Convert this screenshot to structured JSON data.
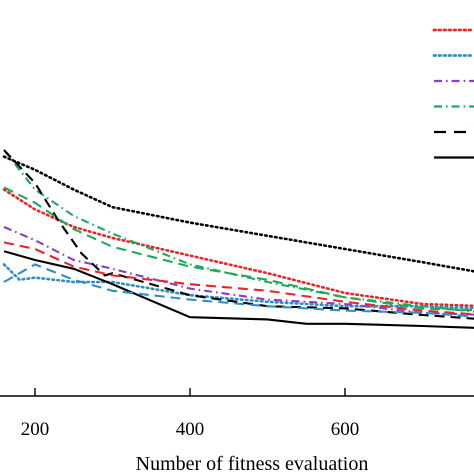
{
  "chart_data": {
    "type": "line",
    "title": "",
    "xlabel": "Number of fitness evaluation",
    "ylabel": "",
    "xlim": [
      160,
      780
    ],
    "ylim": [
      0,
      100
    ],
    "xticks": [
      200,
      400,
      600
    ],
    "grid": false,
    "legend": {
      "placement": "top-right",
      "entries": [
        {
          "series": 0
        },
        {
          "series": 1
        },
        {
          "series": 2
        },
        {
          "series": 3
        },
        {
          "series": 4
        },
        {
          "series": 5
        }
      ]
    },
    "series": [
      {
        "color": "#e8262a",
        "style": "dotted",
        "points": [
          [
            160,
            82
          ],
          [
            200,
            73
          ],
          [
            250,
            65
          ],
          [
            300,
            60
          ],
          [
            400,
            52
          ],
          [
            500,
            44
          ],
          [
            600,
            35
          ],
          [
            700,
            30
          ],
          [
            780,
            29
          ]
        ]
      },
      {
        "color": "#2f8fc4",
        "style": "dotted",
        "points": [
          [
            160,
            48
          ],
          [
            180,
            41
          ],
          [
            200,
            42
          ],
          [
            250,
            40
          ],
          [
            300,
            40
          ],
          [
            400,
            34
          ],
          [
            500,
            31
          ],
          [
            600,
            29
          ],
          [
            700,
            29
          ],
          [
            780,
            28
          ]
        ]
      },
      {
        "color": "#8a3fbf",
        "style": "dash-dot",
        "points": [
          [
            160,
            65
          ],
          [
            200,
            59
          ],
          [
            250,
            50
          ],
          [
            300,
            46
          ],
          [
            400,
            37
          ],
          [
            500,
            32
          ],
          [
            600,
            30
          ],
          [
            700,
            26
          ],
          [
            780,
            25
          ]
        ]
      },
      {
        "color": "#1ea85a",
        "style": "dash-dot",
        "points": [
          [
            160,
            100
          ],
          [
            180,
            91
          ],
          [
            200,
            82
          ],
          [
            250,
            70
          ],
          [
            300,
            62
          ],
          [
            400,
            48
          ],
          [
            500,
            40
          ],
          [
            600,
            33
          ],
          [
            700,
            29
          ],
          [
            780,
            26
          ]
        ]
      },
      {
        "color": "#000000",
        "style": "dashed",
        "points": [
          [
            160,
            100
          ],
          [
            200,
            85
          ],
          [
            230,
            68
          ],
          [
            260,
            53
          ],
          [
            290,
            43
          ],
          [
            300,
            44
          ],
          [
            400,
            34
          ],
          [
            500,
            29
          ],
          [
            600,
            28
          ],
          [
            700,
            25
          ],
          [
            780,
            23
          ]
        ]
      },
      {
        "color": "#000000",
        "style": "solid",
        "points": [
          [
            160,
            54
          ],
          [
            200,
            50
          ],
          [
            250,
            46
          ],
          [
            300,
            39
          ],
          [
            400,
            24
          ],
          [
            500,
            23
          ],
          [
            550,
            21
          ],
          [
            600,
            21
          ],
          [
            700,
            20
          ],
          [
            780,
            19
          ]
        ]
      },
      {
        "color": "#e8262a",
        "style": "dashed",
        "points": [
          [
            160,
            58
          ],
          [
            200,
            55
          ],
          [
            250,
            47
          ],
          [
            300,
            43
          ],
          [
            400,
            39
          ],
          [
            500,
            36
          ],
          [
            600,
            31
          ],
          [
            700,
            27
          ],
          [
            780,
            25
          ]
        ]
      },
      {
        "color": "#2f8fc4",
        "style": "dashed",
        "points": [
          [
            160,
            40
          ],
          [
            200,
            48
          ],
          [
            250,
            41
          ],
          [
            300,
            36
          ],
          [
            400,
            32
          ],
          [
            500,
            29
          ],
          [
            600,
            27
          ],
          [
            700,
            26
          ],
          [
            780,
            24
          ]
        ]
      },
      {
        "color": "#1ea85a",
        "style": "dashed",
        "points": [
          [
            160,
            83
          ],
          [
            200,
            76
          ],
          [
            250,
            64
          ],
          [
            300,
            56
          ],
          [
            400,
            47
          ],
          [
            500,
            41
          ],
          [
            600,
            33
          ],
          [
            700,
            28
          ],
          [
            780,
            27
          ]
        ]
      },
      {
        "color": "#000000",
        "style": "dotted",
        "points": [
          [
            160,
            97
          ],
          [
            200,
            91
          ],
          [
            250,
            82
          ],
          [
            300,
            74
          ],
          [
            400,
            67
          ],
          [
            500,
            61
          ],
          [
            600,
            55
          ],
          [
            700,
            49
          ],
          [
            780,
            44
          ]
        ]
      }
    ]
  }
}
